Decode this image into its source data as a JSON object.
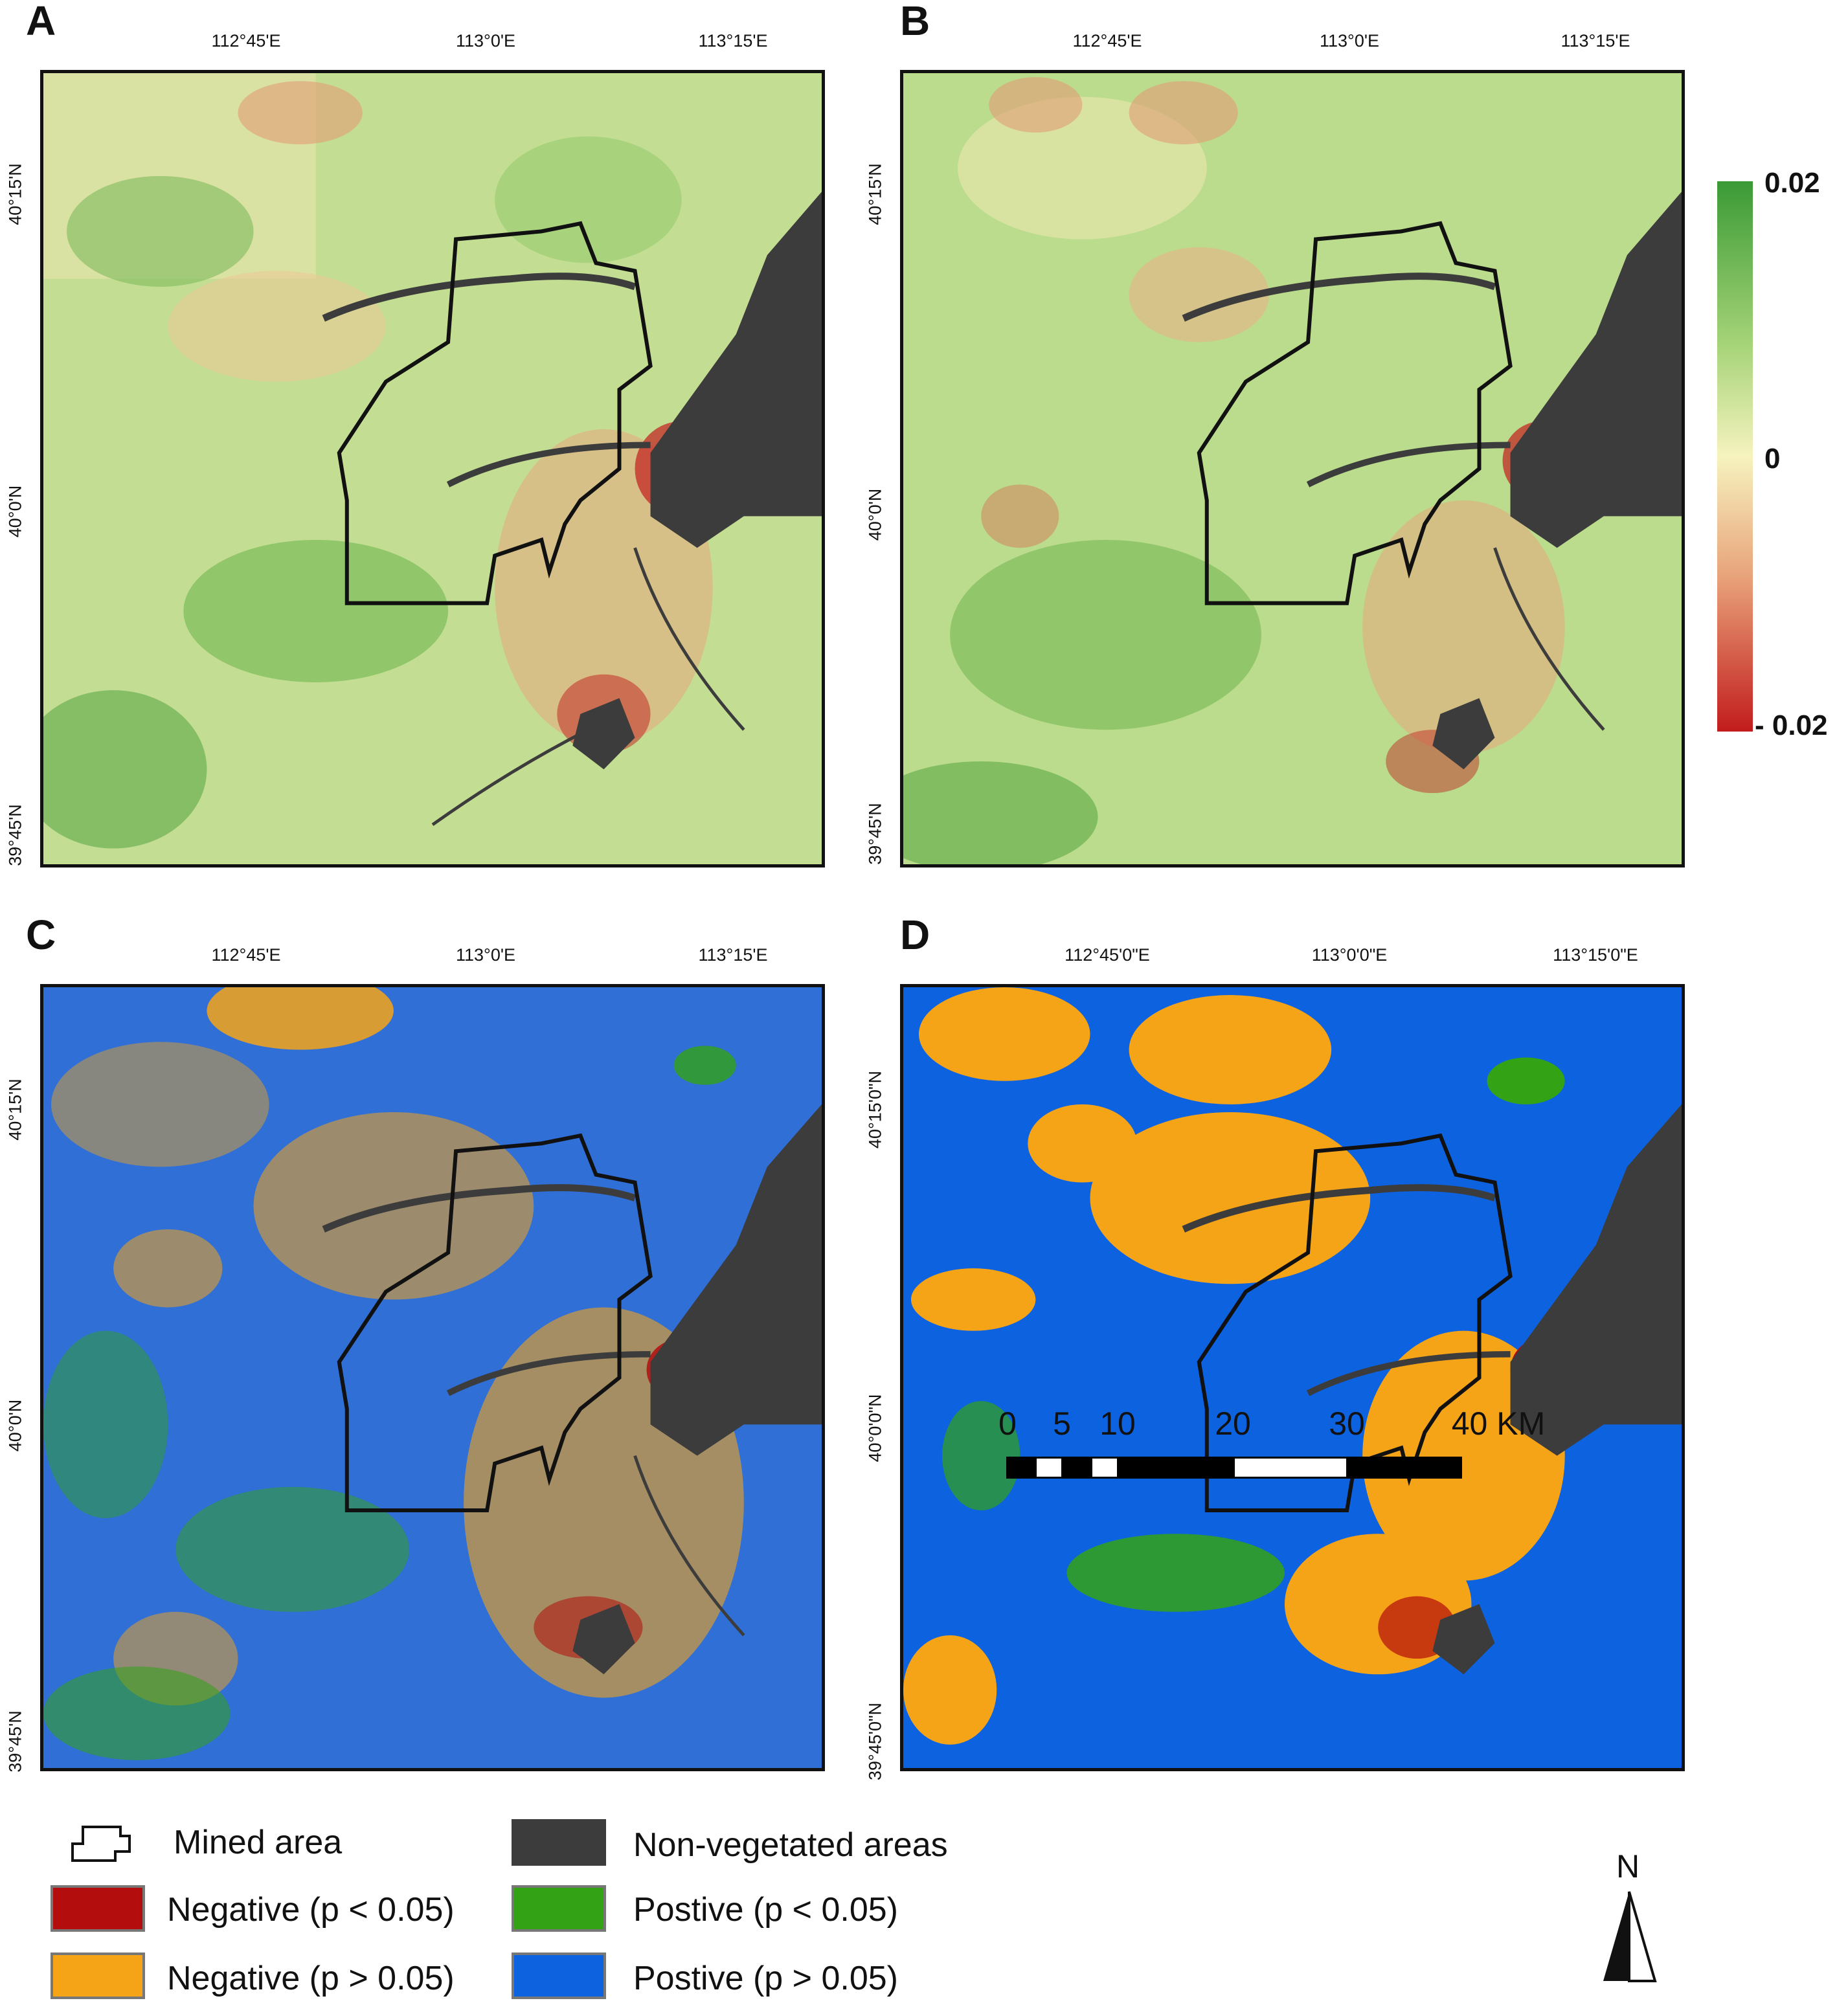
{
  "panels": {
    "A": {
      "label": "A",
      "lon_ticks": [
        "112°45'E",
        "113°0'E",
        "113°15'E"
      ],
      "lat_ticks": [
        "40°15'N",
        "40°0'N",
        "39°45'N"
      ]
    },
    "B": {
      "label": "B",
      "lon_ticks": [
        "112°45'E",
        "113°0'E",
        "113°15'E"
      ],
      "lat_ticks": [
        "40°15'N",
        "40°0'N",
        "39°45'N"
      ]
    },
    "C": {
      "label": "C",
      "lon_ticks": [
        "112°45'E",
        "113°0'E",
        "113°15'E"
      ],
      "lat_ticks": [
        "40°15'N",
        "40°0'N",
        "39°45'N"
      ]
    },
    "D": {
      "label": "D",
      "lon_ticks": [
        "112°45'0\"E",
        "113°0'0\"E",
        "113°15'0\"E"
      ],
      "lat_ticks": [
        "40°15'0\"N",
        "40°0'0\"N",
        "39°45'0\"N"
      ]
    }
  },
  "colorbar": {
    "max_label": "0.02",
    "mid_label": "0",
    "min_label": "- 0.02",
    "colors": {
      "high": "#3a9a35",
      "mid": "#f6f3bf",
      "low": "#c21c1c"
    }
  },
  "legend": {
    "mined_area": "Mined area",
    "non_vegetated": "Non-vegetated areas",
    "negative_sig": "Negative (p < 0.05)",
    "negative_nonsig": "Negative (p > 0.05)",
    "positive_sig": "Postive (p < 0.05)",
    "positive_nonsig": "Postive (p > 0.05)",
    "colors": {
      "negative_sig": "#b30d0d",
      "negative_nonsig": "#f5a418",
      "positive_sig": "#33a315",
      "positive_nonsig": "#0d62e0",
      "non_vegetated": "#3c3c3c"
    }
  },
  "scale_bar": {
    "labels": [
      "0",
      "5",
      "10",
      "20",
      "30",
      "40 KM"
    ]
  },
  "north_arrow": {
    "label": "N"
  }
}
